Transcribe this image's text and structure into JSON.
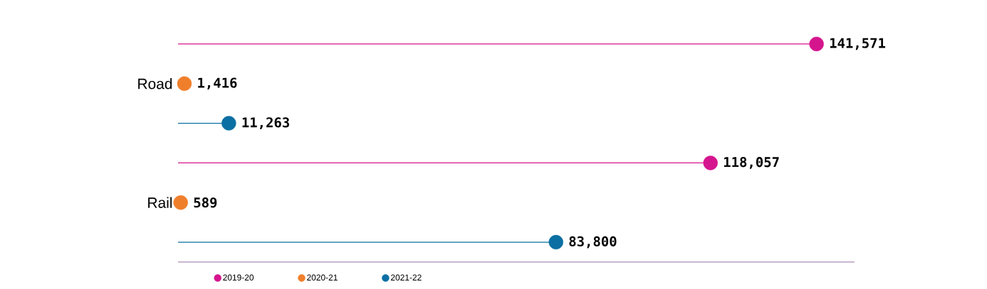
{
  "chart_data": {
    "type": "lollipop",
    "orientation": "horizontal",
    "categories": [
      null,
      "Road",
      null,
      null,
      "Rail",
      null
    ],
    "xlim": [
      0,
      150000
    ],
    "tick_labels": "y",
    "legend": "bottom",
    "series": [
      {
        "name": "2019-20",
        "color": "#d5158d",
        "values": [
          141571,
          null,
          null,
          118057,
          null,
          null
        ],
        "value_labels": [
          "141,571",
          null,
          null,
          "118,057",
          null,
          null
        ]
      },
      {
        "name": "2020-21",
        "color": "#f07f2c",
        "values": [
          null,
          1416,
          null,
          null,
          589,
          null
        ],
        "value_labels": [
          null,
          "1,416",
          null,
          null,
          "589",
          null
        ]
      },
      {
        "name": "2021-22",
        "color": "#0b6fa3",
        "values": [
          null,
          null,
          11263,
          null,
          null,
          83800
        ],
        "value_labels": [
          null,
          null,
          "11,263",
          null,
          null,
          "83,800"
        ]
      }
    ]
  }
}
